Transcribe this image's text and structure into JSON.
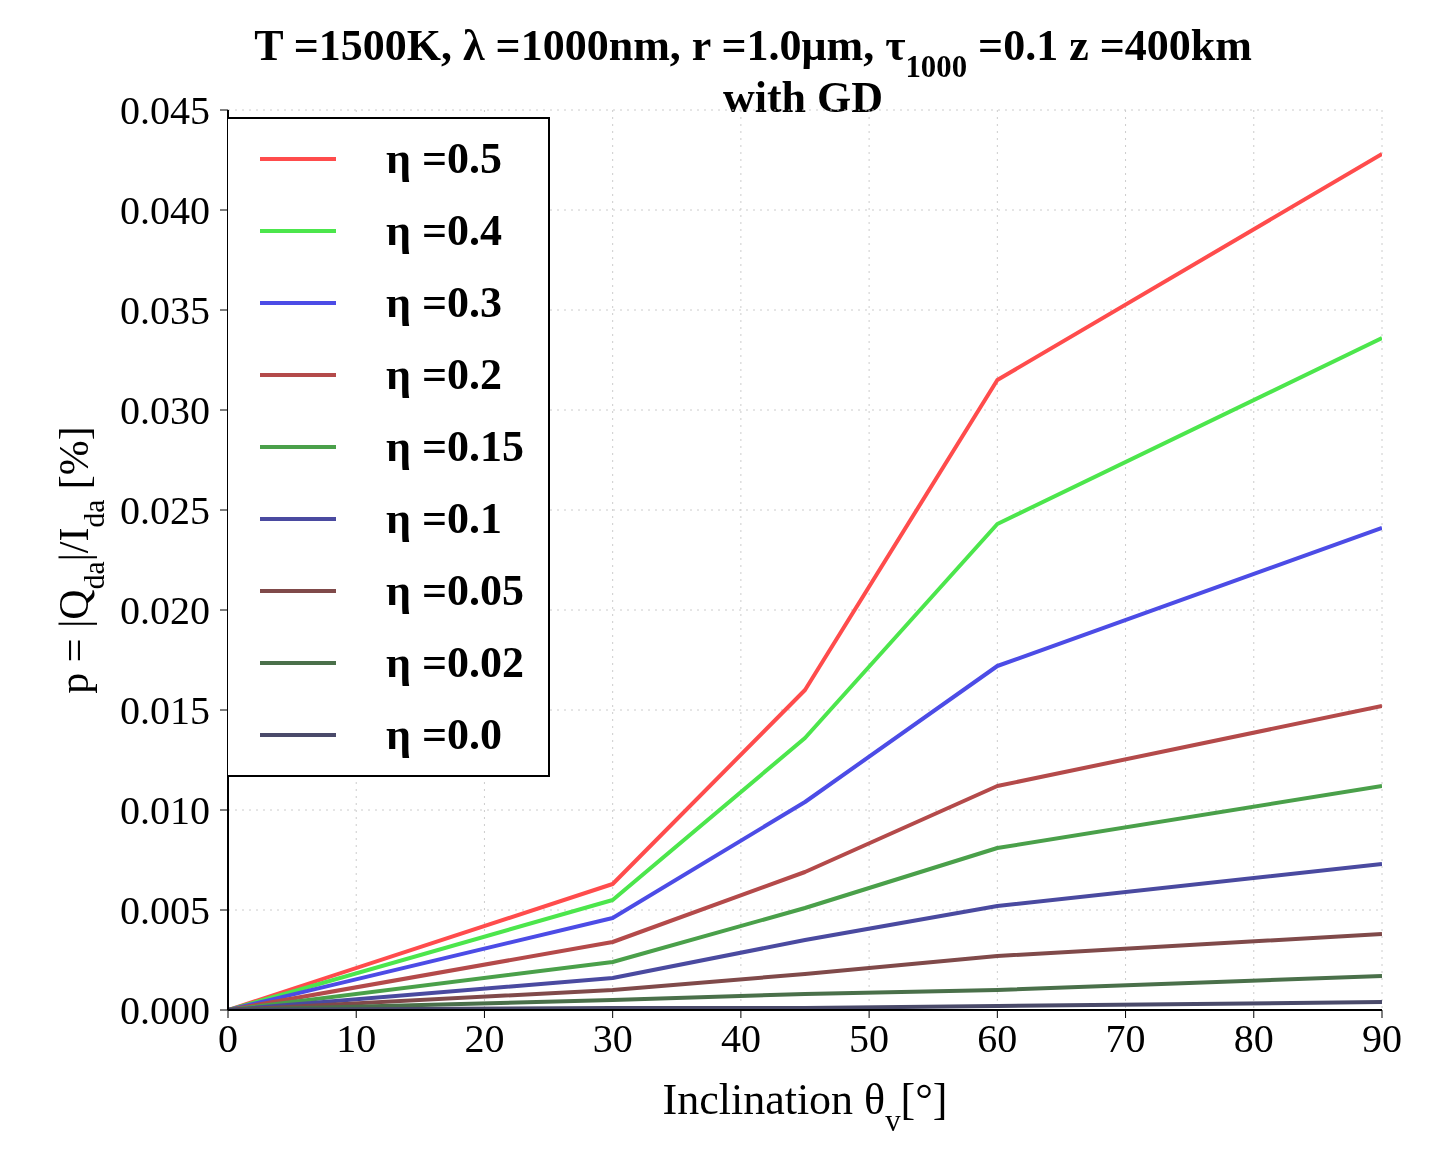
{
  "chart_data": {
    "type": "line",
    "title": "T =1500K, λ =1000nm, r =1.0μm, τ$_{1000}$ =0.1 z =400km",
    "subtitle": "with GD",
    "xlabel": "Inclination θ$_{v}$[°]",
    "ylabel": "p = |Q$_{da}$|/I$_{da}$ [%]",
    "x": [
      0,
      30,
      45,
      60,
      90
    ],
    "series": [
      {
        "name": "η =0.5",
        "color": "#ff4c4c",
        "values": [
          0,
          0.0063,
          0.016,
          0.0315,
          0.0428
        ]
      },
      {
        "name": "η =0.4",
        "color": "#4ce64c",
        "values": [
          0,
          0.0055,
          0.0136,
          0.0243,
          0.0336
        ]
      },
      {
        "name": "η =0.3",
        "color": "#4c4ce6",
        "values": [
          0,
          0.0046,
          0.0104,
          0.0172,
          0.0241
        ]
      },
      {
        "name": "η =0.2",
        "color": "#b44a4a",
        "values": [
          0,
          0.0034,
          0.0069,
          0.0112,
          0.0152
        ]
      },
      {
        "name": "η =0.15",
        "color": "#4aa04a",
        "values": [
          0,
          0.0024,
          0.0051,
          0.0081,
          0.0112
        ]
      },
      {
        "name": "η =0.1",
        "color": "#4a4aa0",
        "values": [
          0,
          0.0016,
          0.0035,
          0.0052,
          0.0073
        ]
      },
      {
        "name": "η =0.05",
        "color": "#804a4a",
        "values": [
          0,
          0.001,
          0.0018,
          0.0027,
          0.0038
        ]
      },
      {
        "name": "η =0.02",
        "color": "#4a704a",
        "values": [
          0,
          0.0005,
          0.0008,
          0.001,
          0.0017
        ]
      },
      {
        "name": "η =0.0",
        "color": "#4a4a6a",
        "values": [
          0,
          0.0001,
          0.0001,
          0.0002,
          0.0004
        ]
      }
    ],
    "xlim": [
      0,
      90
    ],
    "xticks": [
      0,
      10,
      20,
      30,
      40,
      50,
      60,
      70,
      80,
      90
    ],
    "ylim": [
      0,
      0.045
    ],
    "yticks": [
      {
        "value": 0,
        "label": "0.000"
      },
      {
        "value": 0.005,
        "label": "0.005"
      },
      {
        "value": 0.01,
        "label": "0.010"
      },
      {
        "value": 0.015,
        "label": "0.015"
      },
      {
        "value": 0.02,
        "label": "0.020"
      },
      {
        "value": 0.025,
        "label": "0.025"
      },
      {
        "value": 0.03,
        "label": "0.030"
      },
      {
        "value": 0.035,
        "label": "0.035"
      },
      {
        "value": 0.04,
        "label": "0.040"
      },
      {
        "value": 0.045,
        "label": "0.045"
      }
    ],
    "grid": true,
    "legend": "top left",
    "marker": "none",
    "line_style": "solid"
  }
}
